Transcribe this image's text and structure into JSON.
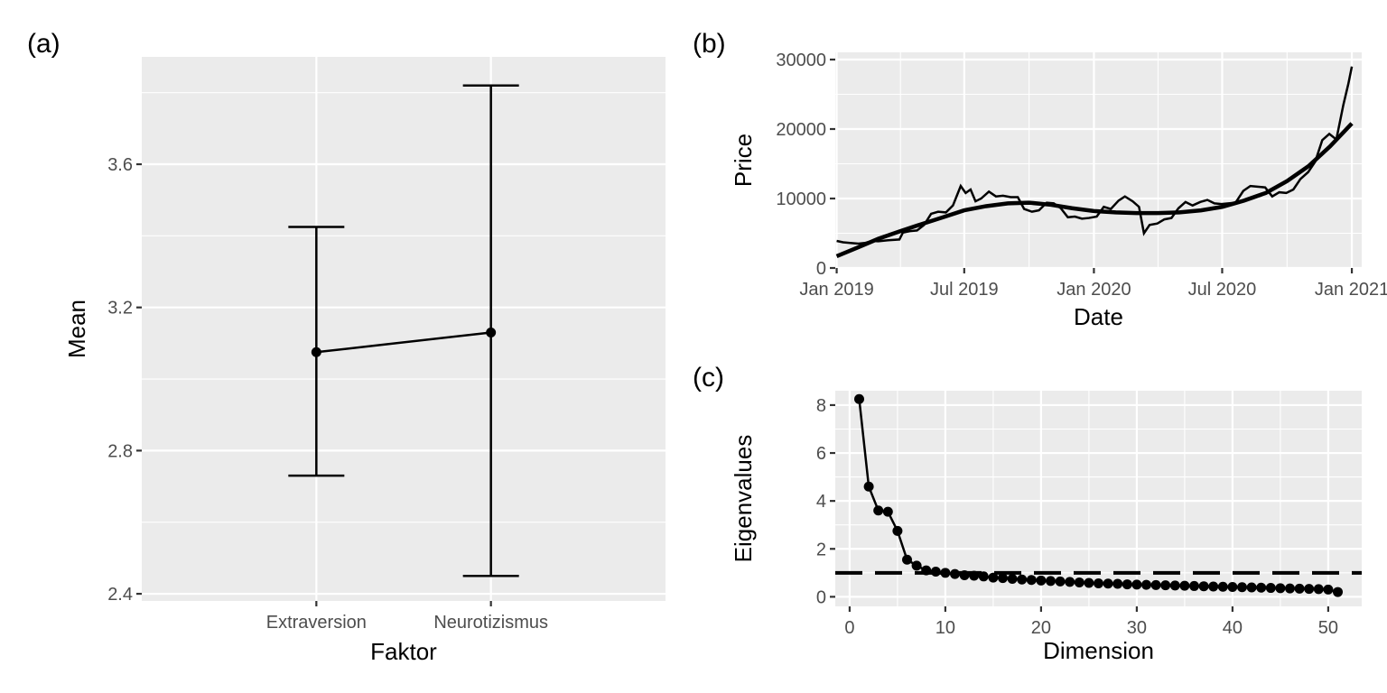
{
  "chart_data": [
    {
      "tag": "(a)",
      "type": "line",
      "xlabel": "Faktor",
      "ylabel": "Mean",
      "categories": [
        "Extraversion",
        "Neurotizismus"
      ],
      "values": [
        3.075,
        3.13
      ],
      "error_low": [
        2.73,
        2.45
      ],
      "error_high": [
        3.425,
        3.82
      ],
      "ylim": [
        2.38,
        3.9
      ],
      "yticks": [
        "2.4",
        "2.8",
        "3.2",
        "3.6"
      ],
      "ytick_values": [
        2.4,
        2.8,
        3.2,
        3.6
      ],
      "grid": true
    },
    {
      "tag": "(b)",
      "type": "line",
      "xlabel": "Date",
      "ylabel": "Price",
      "xlim": [
        "2018-12-30",
        "2021-01-15"
      ],
      "ylim": [
        0,
        30000
      ],
      "xticks": [
        "Jan 2019",
        "Jul 2019",
        "Jan 2020",
        "Jul 2020",
        "Jan 2021"
      ],
      "xtick_values": [
        "2019-01-01",
        "2019-07-01",
        "2020-01-01",
        "2020-07-01",
        "2021-01-01"
      ],
      "yticks": [
        "0",
        "10000",
        "20000",
        "30000"
      ],
      "ytick_values": [
        0,
        10000,
        20000,
        30000
      ],
      "series": [
        {
          "x": [
            "2019-01-01",
            "2019-01-10",
            "2019-01-20",
            "2019-02-01",
            "2019-02-10",
            "2019-02-20",
            "2019-03-01",
            "2019-03-15",
            "2019-03-31",
            "2019-04-05",
            "2019-04-15",
            "2019-04-25",
            "2019-05-05",
            "2019-05-15",
            "2019-05-25",
            "2019-06-05",
            "2019-06-15",
            "2019-06-26",
            "2019-07-03",
            "2019-07-10",
            "2019-07-17",
            "2019-07-25",
            "2019-08-05",
            "2019-08-15",
            "2019-08-25",
            "2019-09-05",
            "2019-09-15",
            "2019-09-24",
            "2019-10-05",
            "2019-10-15",
            "2019-10-26",
            "2019-11-05",
            "2019-11-15",
            "2019-11-25",
            "2019-12-05",
            "2019-12-15",
            "2019-12-25",
            "2020-01-05",
            "2020-01-15",
            "2020-01-25",
            "2020-02-05",
            "2020-02-14",
            "2020-02-25",
            "2020-03-05",
            "2020-03-12",
            "2020-03-20",
            "2020-03-31",
            "2020-04-10",
            "2020-04-20",
            "2020-04-30",
            "2020-05-10",
            "2020-05-20",
            "2020-05-31",
            "2020-06-10",
            "2020-06-20",
            "2020-06-30",
            "2020-07-10",
            "2020-07-20",
            "2020-07-31",
            "2020-08-10",
            "2020-08-20",
            "2020-08-31",
            "2020-09-10",
            "2020-09-20",
            "2020-09-30",
            "2020-10-10",
            "2020-10-20",
            "2020-10-31",
            "2020-11-10",
            "2020-11-20",
            "2020-11-30",
            "2020-12-10",
            "2020-12-20",
            "2020-12-27",
            "2021-01-01"
          ],
          "y": [
            3900,
            3700,
            3600,
            3500,
            3600,
            3900,
            3850,
            4000,
            4100,
            5100,
            5300,
            5400,
            6200,
            7800,
            8100,
            8000,
            9000,
            11800,
            10800,
            11300,
            9600,
            10000,
            11000,
            10300,
            10400,
            10200,
            10200,
            8500,
            8100,
            8300,
            9400,
            9300,
            8600,
            7300,
            7400,
            7100,
            7200,
            7400,
            8800,
            8500,
            9700,
            10300,
            9600,
            8800,
            5000,
            6200,
            6400,
            7000,
            7200,
            8600,
            9500,
            9000,
            9500,
            9800,
            9300,
            9200,
            9300,
            9400,
            11100,
            11800,
            11700,
            11600,
            10300,
            10900,
            10800,
            11300,
            12800,
            13800,
            15300,
            18400,
            19300,
            18500,
            23500,
            26500,
            29000
          ]
        },
        {
          "x": [
            "2019-01-01",
            "2019-02-01",
            "2019-03-01",
            "2019-04-01",
            "2019-05-01",
            "2019-06-01",
            "2019-07-01",
            "2019-08-01",
            "2019-09-01",
            "2019-10-01",
            "2019-11-01",
            "2019-12-01",
            "2020-01-01",
            "2020-02-01",
            "2020-03-01",
            "2020-04-01",
            "2020-05-01",
            "2020-06-01",
            "2020-07-01",
            "2020-08-01",
            "2020-09-01",
            "2020-10-01",
            "2020-11-01",
            "2020-12-01",
            "2021-01-01"
          ],
          "y": [
            1700,
            3000,
            4200,
            5300,
            6300,
            7300,
            8300,
            8900,
            9300,
            9400,
            9100,
            8600,
            8200,
            8000,
            7900,
            7900,
            8000,
            8300,
            8800,
            9700,
            10800,
            12500,
            14700,
            17500,
            20800
          ]
        }
      ],
      "grid": true
    },
    {
      "tag": "(c)",
      "type": "line",
      "xlabel": "Dimension",
      "ylabel": "Eigenvalues",
      "xlim": [
        -1.5,
        53.5
      ],
      "ylim": [
        -0.4,
        8.6
      ],
      "xticks": [
        "0",
        "10",
        "20",
        "30",
        "40",
        "50"
      ],
      "xtick_values": [
        0,
        10,
        20,
        30,
        40,
        50
      ],
      "yticks": [
        "0",
        "2",
        "4",
        "6",
        "8"
      ],
      "ytick_values": [
        0,
        2,
        4,
        6,
        8
      ],
      "x": [
        1,
        2,
        3,
        4,
        5,
        6,
        7,
        8,
        9,
        10,
        11,
        12,
        13,
        14,
        15,
        16,
        17,
        18,
        19,
        20,
        21,
        22,
        23,
        24,
        25,
        26,
        27,
        28,
        29,
        30,
        31,
        32,
        33,
        34,
        35,
        36,
        37,
        38,
        39,
        40,
        41,
        42,
        43,
        44,
        45,
        46,
        47,
        48,
        49,
        50,
        51
      ],
      "values": [
        8.25,
        4.6,
        3.6,
        3.55,
        2.75,
        1.55,
        1.3,
        1.1,
        1.05,
        1.0,
        0.95,
        0.9,
        0.88,
        0.85,
        0.8,
        0.78,
        0.75,
        0.72,
        0.7,
        0.68,
        0.66,
        0.64,
        0.62,
        0.6,
        0.58,
        0.56,
        0.55,
        0.54,
        0.52,
        0.51,
        0.5,
        0.49,
        0.48,
        0.47,
        0.46,
        0.45,
        0.44,
        0.43,
        0.42,
        0.41,
        0.4,
        0.39,
        0.38,
        0.37,
        0.36,
        0.35,
        0.34,
        0.33,
        0.32,
        0.3,
        0.2
      ],
      "reference_line": 1,
      "grid": true
    }
  ]
}
